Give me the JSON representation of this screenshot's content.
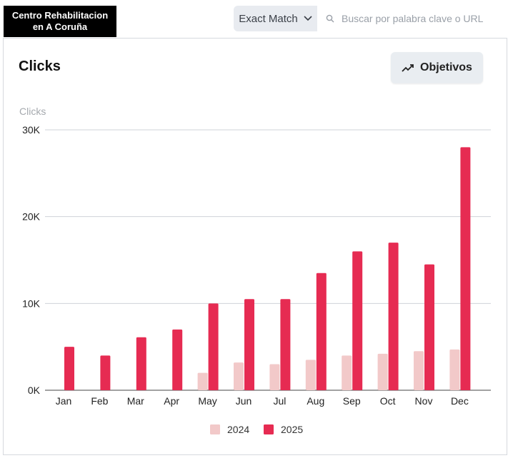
{
  "brand": {
    "name": "Centro Rehabilitacion\nen A Coruña"
  },
  "toolbar": {
    "match_label": "Exact Match",
    "search_placeholder": "Buscar por palabra clave o URL"
  },
  "card": {
    "title": "Clicks",
    "goals_label": "Objetivos"
  },
  "colors": {
    "series_2024": "#f2c9c9",
    "series_2025": "#e62b52",
    "grid": "#cfd3d8"
  },
  "chart_data": {
    "type": "bar",
    "ylabel": "Clicks",
    "ylim": [
      0,
      30000
    ],
    "yticks": [
      0,
      10000,
      20000,
      30000
    ],
    "ytick_labels": [
      "0K",
      "10K",
      "20K",
      "30K"
    ],
    "grid": true,
    "legend_position": "bottom-center",
    "categories": [
      "Jan",
      "Feb",
      "Mar",
      "Apr",
      "May",
      "Jun",
      "Jul",
      "Aug",
      "Sep",
      "Oct",
      "Nov",
      "Dec"
    ],
    "series": [
      {
        "name": "2024",
        "values": [
          0,
          0,
          0,
          0,
          2000,
          3200,
          3000,
          3500,
          4000,
          4200,
          4500,
          4700
        ]
      },
      {
        "name": "2025",
        "values": [
          5000,
          4000,
          6100,
          7000,
          10000,
          10500,
          10500,
          13500,
          16000,
          17000,
          14500,
          28000
        ]
      }
    ]
  }
}
